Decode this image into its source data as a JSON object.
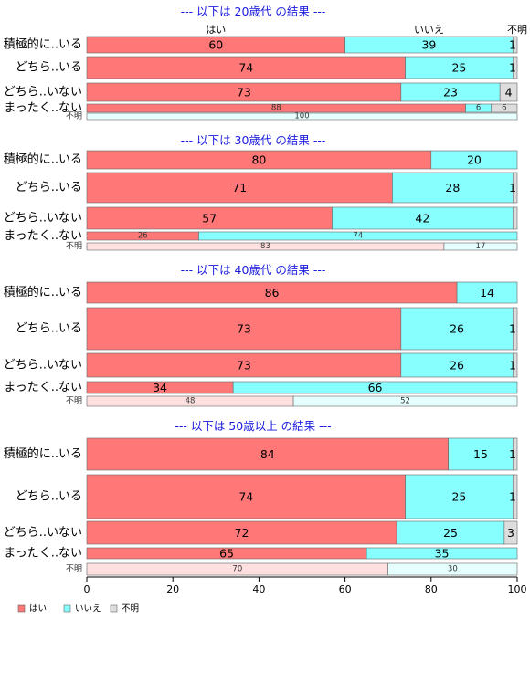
{
  "chart_data": {
    "type": "bar",
    "orientation": "horizontal-stacked-100",
    "legend": {
      "position": "bottom-left",
      "items": [
        {
          "name": "はい",
          "color": "#ff7777"
        },
        {
          "name": "いいえ",
          "color": "#88ffff"
        },
        {
          "name": "不明",
          "color": "#dddddd"
        }
      ]
    },
    "column_headers": [
      "はい",
      "いいえ",
      "不明"
    ],
    "xlim": [
      0,
      100
    ],
    "xticks": [
      0,
      20,
      40,
      60,
      80,
      100
    ],
    "panels": [
      {
        "title": "--- 以下は 20歳代 の結果 ---",
        "rows": [
          {
            "label": "積極的に..いる",
            "values": [
              60,
              39,
              1
            ],
            "labels": [
              "60",
              "39",
              "1"
            ],
            "small": false
          },
          {
            "label": "どちら..いる",
            "values": [
              74,
              25,
              1
            ],
            "labels": [
              "74",
              "25",
              "1"
            ],
            "small": false
          },
          {
            "label": "どちら..いない",
            "values": [
              73,
              23,
              4
            ],
            "labels": [
              "73",
              "23",
              "4"
            ],
            "small": false
          },
          {
            "label": "まったく..ない",
            "values": [
              88,
              6,
              6
            ],
            "labels": [
              "88",
              "6",
              "6"
            ],
            "small": false
          },
          {
            "label": "不明",
            "values": [
              0,
              100,
              0
            ],
            "labels": [
              "",
              "100",
              ""
            ],
            "small": true
          }
        ]
      },
      {
        "title": "--- 以下は 30歳代 の結果 ---",
        "rows": [
          {
            "label": "積極的に..いる",
            "values": [
              80,
              20,
              0
            ],
            "labels": [
              "80",
              "20",
              ""
            ],
            "small": false
          },
          {
            "label": "どちら..いる",
            "values": [
              71,
              28,
              1
            ],
            "labels": [
              "71",
              "28",
              "1"
            ],
            "small": false
          },
          {
            "label": "どちら..いない",
            "values": [
              57,
              42,
              1
            ],
            "labels": [
              "57",
              "42",
              ""
            ],
            "small": false
          },
          {
            "label": "まったく..ない",
            "values": [
              26,
              74,
              0
            ],
            "labels": [
              "26",
              "74",
              ""
            ],
            "small": false
          },
          {
            "label": "不明",
            "values": [
              83,
              17,
              0
            ],
            "labels": [
              "83",
              "17",
              ""
            ],
            "small": true
          }
        ]
      },
      {
        "title": "--- 以下は 40歳代 の結果 ---",
        "rows": [
          {
            "label": "積極的に..いる",
            "values": [
              86,
              14,
              0
            ],
            "labels": [
              "86",
              "14",
              ""
            ],
            "small": false
          },
          {
            "label": "どちら..いる",
            "values": [
              73,
              26,
              1
            ],
            "labels": [
              "73",
              "26",
              "1"
            ],
            "small": false
          },
          {
            "label": "どちら..いない",
            "values": [
              73,
              26,
              1
            ],
            "labels": [
              "73",
              "26",
              "1"
            ],
            "small": false
          },
          {
            "label": "まったく..ない",
            "values": [
              34,
              66,
              0
            ],
            "labels": [
              "34",
              "66",
              ""
            ],
            "small": false
          },
          {
            "label": "不明",
            "values": [
              48,
              52,
              0
            ],
            "labels": [
              "48",
              "52",
              ""
            ],
            "small": true
          }
        ]
      },
      {
        "title": "--- 以下は 50歳以上 の結果 ---",
        "rows": [
          {
            "label": "積極的に..いる",
            "values": [
              84,
              15,
              1
            ],
            "labels": [
              "84",
              "15",
              "1"
            ],
            "small": false
          },
          {
            "label": "どちら..いる",
            "values": [
              74,
              25,
              1
            ],
            "labels": [
              "74",
              "25",
              "1"
            ],
            "small": false
          },
          {
            "label": "どちら..いない",
            "values": [
              72,
              25,
              3
            ],
            "labels": [
              "72",
              "25",
              "3"
            ],
            "small": false
          },
          {
            "label": "まったく..ない",
            "values": [
              65,
              35,
              0
            ],
            "labels": [
              "65",
              "35",
              ""
            ],
            "small": false
          },
          {
            "label": "不明",
            "values": [
              70,
              30,
              0
            ],
            "labels": [
              "70",
              "30",
              ""
            ],
            "small": true
          }
        ]
      }
    ]
  }
}
